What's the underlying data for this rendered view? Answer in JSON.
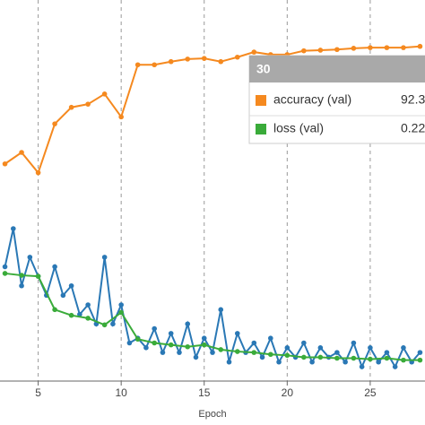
{
  "chart_data": {
    "type": "line",
    "x_label": "Epoch",
    "xlim": [
      2.7,
      28.3
    ],
    "xticks": [
      5,
      10,
      15,
      20,
      25
    ],
    "ylim": [
      40,
      100
    ],
    "y2lim": [
      0,
      4
    ],
    "grid": true,
    "series": [
      {
        "name": "accuracy (val)",
        "color": "#f5891f",
        "x": [
          3,
          4,
          5,
          6,
          7,
          8,
          9,
          10,
          11,
          12,
          13,
          14,
          15,
          16,
          17,
          18,
          19,
          20,
          21,
          22,
          23,
          24,
          25,
          26,
          27,
          28
        ],
        "values": [
          74.2,
          76.0,
          72.8,
          80.5,
          83.1,
          83.6,
          85.2,
          81.6,
          89.8,
          89.8,
          90.3,
          90.7,
          90.8,
          90.3,
          91.0,
          91.8,
          91.4,
          91.4,
          92.0,
          92.1,
          92.2,
          92.4,
          92.5,
          92.5,
          92.5,
          92.7
        ]
      },
      {
        "color": "#2a78b5",
        "axis": "y2",
        "x": [
          3,
          3.5,
          4,
          4.5,
          5,
          5.5,
          6,
          6.5,
          7,
          7.5,
          8,
          8.5,
          9,
          9.5,
          10,
          10.5,
          11,
          11.5,
          12,
          12.5,
          13,
          13.5,
          14,
          14.5,
          15,
          15.5,
          16,
          16.5,
          17,
          17.5,
          18,
          18.5,
          19,
          19.5,
          20,
          20.5,
          21,
          21.5,
          22,
          22.5,
          23,
          23.5,
          24,
          24.5,
          25,
          25.5,
          26,
          26.5,
          27,
          27.5,
          28
        ],
        "values": [
          1.2,
          1.6,
          1.0,
          1.3,
          1.1,
          0.9,
          1.2,
          0.9,
          1.0,
          0.7,
          0.8,
          0.6,
          1.3,
          0.6,
          0.8,
          0.4,
          0.45,
          0.35,
          0.55,
          0.3,
          0.5,
          0.3,
          0.6,
          0.25,
          0.45,
          0.3,
          0.75,
          0.2,
          0.5,
          0.3,
          0.4,
          0.25,
          0.45,
          0.2,
          0.35,
          0.25,
          0.4,
          0.2,
          0.35,
          0.25,
          0.3,
          0.2,
          0.4,
          0.15,
          0.35,
          0.2,
          0.3,
          0.15,
          0.35,
          0.2,
          0.3
        ]
      },
      {
        "name": "loss (val)",
        "color": "#3aab3a",
        "axis": "y2",
        "x": [
          3,
          4,
          5,
          6,
          7,
          8,
          9,
          10,
          11,
          12,
          13,
          14,
          15,
          16,
          17,
          18,
          19,
          20,
          21,
          22,
          23,
          24,
          25,
          26,
          27,
          28
        ],
        "values": [
          1.13,
          1.11,
          1.1,
          0.75,
          0.69,
          0.66,
          0.59,
          0.72,
          0.44,
          0.4,
          0.38,
          0.36,
          0.38,
          0.33,
          0.31,
          0.3,
          0.28,
          0.27,
          0.25,
          0.25,
          0.24,
          0.24,
          0.23,
          0.24,
          0.22,
          0.22
        ]
      }
    ],
    "tooltip": {
      "title": "30",
      "rows": [
        {
          "label": "accuracy (val)",
          "value": "92.3"
        },
        {
          "label": "loss (val)",
          "value": "0.22"
        }
      ]
    }
  }
}
